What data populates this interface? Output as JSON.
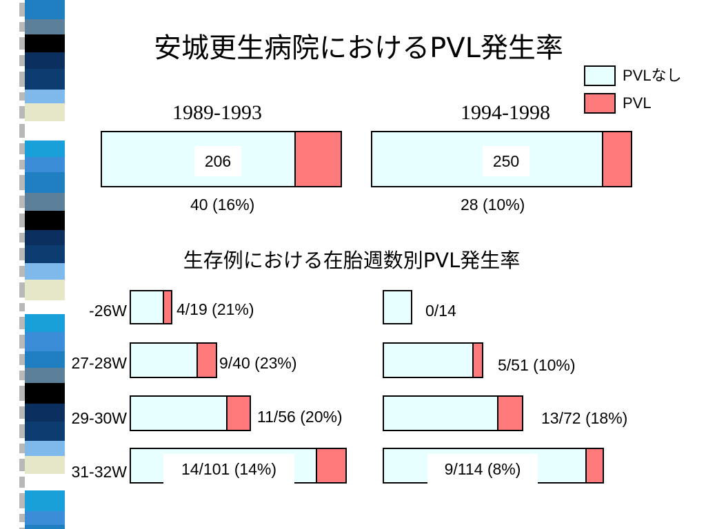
{
  "title": "安城更生病院におけるPVL発生率",
  "legend": [
    {
      "label": "PVLなし",
      "color": "#e8ffff"
    },
    {
      "label": "PVL",
      "color": "#ff7a7a"
    }
  ],
  "subtitle": "生存例における在胎週数別PVL発生率",
  "colors": {
    "no_pvl": "#e8ffff",
    "pvl": "#ff7a7a",
    "border": "#000000"
  },
  "chart_data": [
    {
      "type": "bar",
      "orientation": "horizontal-stacked",
      "series": [
        {
          "name": "PVLなし"
        },
        {
          "name": "PVL"
        }
      ],
      "groups": [
        {
          "period": "1989-1993",
          "total_label": "206",
          "pvl_label": "40 (16%)",
          "total": 206,
          "pvl": 40
        },
        {
          "period": "1994-1998",
          "total_label": "250",
          "pvl_label": "28 (10%)",
          "total": 250,
          "pvl": 28
        }
      ]
    },
    {
      "type": "bar",
      "orientation": "horizontal-stacked",
      "title": "生存例における在胎週数別PVL発生率",
      "categories": [
        "-26W",
        "27-28W",
        "29-30W",
        "31-32W"
      ],
      "groups": [
        {
          "period": "1989-1993",
          "rows": [
            {
              "total": 19,
              "pvl": 4,
              "label": "4/19 (21%)"
            },
            {
              "total": 40,
              "pvl": 9,
              "label": "9/40 (23%)"
            },
            {
              "total": 56,
              "pvl": 11,
              "label": "11/56 (20%)"
            },
            {
              "total": 101,
              "pvl": 14,
              "label": "14/101 (14%)"
            }
          ]
        },
        {
          "period": "1994-1998",
          "rows": [
            {
              "total": 14,
              "pvl": 0,
              "label": "0/14"
            },
            {
              "total": 51,
              "pvl": 5,
              "label": "5/51 (10%)"
            },
            {
              "total": 72,
              "pvl": 13,
              "label": "13/72 (18%)"
            },
            {
              "total": 114,
              "pvl": 9,
              "label": "9/114 (8%)"
            }
          ]
        }
      ]
    }
  ]
}
